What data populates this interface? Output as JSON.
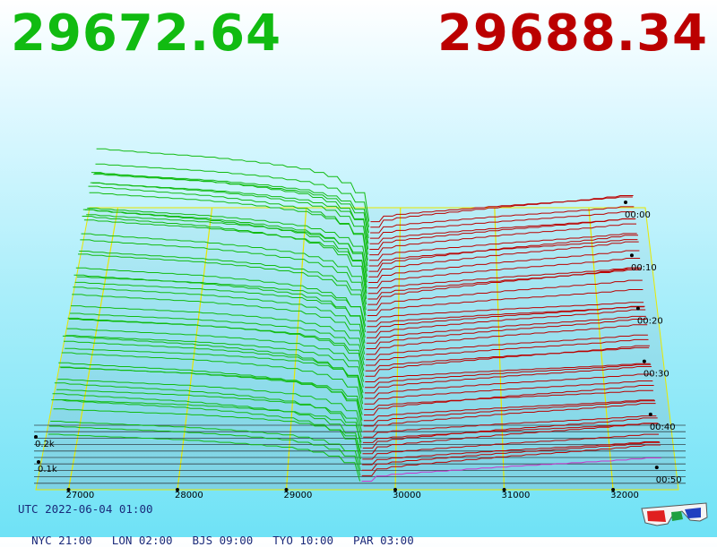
{
  "header": {
    "bid_price": "29672.64",
    "ask_price": "29688.34"
  },
  "footer": {
    "utc": "UTC 2022-06-04 01:00",
    "cities": [
      "NYC 21:00",
      "LON 02:00",
      "BJS 09:00",
      "TYO 10:00",
      "PAR 03:00"
    ]
  },
  "icons": {
    "toggle_3d": "anaglyph-3d-glasses-icon"
  },
  "colors": {
    "bid": "#11bb11",
    "ask": "#bb0000",
    "grid": "#e8e800",
    "latest_ask": "#cc33cc"
  },
  "chart_data": {
    "type": "area",
    "title": "",
    "x_ticks": [
      "27000",
      "28000",
      "29000",
      "30000",
      "31000",
      "32000"
    ],
    "y_ticks": [
      "0.1k",
      "0.2k"
    ],
    "time_ticks": [
      "00:00",
      "00:10",
      "00:20",
      "00:30",
      "00:40",
      "00:50"
    ],
    "xlim": [
      26700,
      32600
    ],
    "mid_price": 29680,
    "series": [
      {
        "name": "bid",
        "x": [
          26800,
          27000,
          27500,
          28000,
          28500,
          29000,
          29300,
          29500,
          29600,
          29650,
          29672.64
        ],
        "y": [
          210,
          205,
          195,
          185,
          170,
          150,
          125,
          95,
          55,
          25,
          0
        ]
      },
      {
        "name": "ask",
        "x": [
          29688.34,
          29700,
          29800,
          30000,
          30500,
          31000,
          31500,
          32000,
          32300
        ],
        "y": [
          0,
          8,
          20,
          30,
          45,
          60,
          72,
          85,
          95
        ]
      }
    ]
  }
}
